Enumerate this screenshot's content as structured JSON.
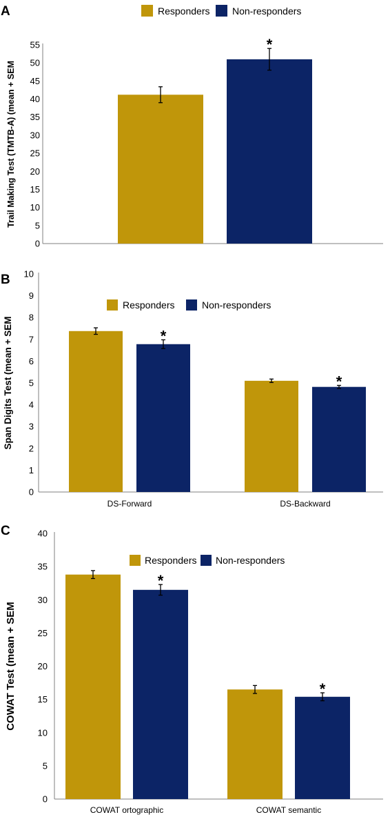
{
  "chart_data": [
    {
      "type": "bar",
      "panel": "A",
      "title": "",
      "xlabel": "",
      "ylabel": "Trail Making Test (TMTB-A) (mean + SEM",
      "ylim": [
        0,
        55
      ],
      "yticks": [
        0,
        5,
        10,
        15,
        20,
        25,
        30,
        35,
        40,
        45,
        50,
        55
      ],
      "categories": [
        ""
      ],
      "series": [
        {
          "name": "Responders",
          "values": [
            41.2
          ],
          "errors": [
            2.2
          ]
        },
        {
          "name": "Non-responders",
          "values": [
            51.0
          ],
          "errors": [
            3.0
          ]
        }
      ],
      "annotations": [
        {
          "text": "*",
          "category": 0,
          "series": 1
        }
      ],
      "legend": "top"
    },
    {
      "type": "bar",
      "panel": "B",
      "title": "",
      "xlabel": "",
      "ylabel": "Span Digits Test (mean + SEM",
      "ylim": [
        0,
        10
      ],
      "yticks": [
        0,
        1,
        2,
        3,
        4,
        5,
        6,
        7,
        8,
        9,
        10
      ],
      "categories": [
        "DS-Forward",
        "DS-Backward"
      ],
      "series": [
        {
          "name": "Responders",
          "values": [
            7.38,
            5.1
          ],
          "errors": [
            0.15,
            0.08
          ]
        },
        {
          "name": "Non-responders",
          "values": [
            6.78,
            4.82
          ],
          "errors": [
            0.2,
            0.07
          ]
        }
      ],
      "annotations": [
        {
          "text": "*",
          "category": 0,
          "series": 1
        },
        {
          "text": "*",
          "category": 1,
          "series": 1
        }
      ],
      "legend": "top"
    },
    {
      "type": "bar",
      "panel": "C",
      "title": "",
      "xlabel": "",
      "ylabel": "COWAT Test (mean + SEM",
      "ylim": [
        0,
        40
      ],
      "yticks": [
        0,
        5,
        10,
        15,
        20,
        25,
        30,
        35,
        40
      ],
      "categories": [
        "COWAT ortographic",
        "COWAT semantic"
      ],
      "series": [
        {
          "name": "Responders",
          "values": [
            33.8,
            16.5
          ],
          "errors": [
            0.6,
            0.6
          ]
        },
        {
          "name": "Non-responders",
          "values": [
            31.5,
            15.4
          ],
          "errors": [
            0.8,
            0.6
          ]
        }
      ],
      "annotations": [
        {
          "text": "*",
          "category": 0,
          "series": 1
        },
        {
          "text": "*",
          "category": 1,
          "series": 1
        }
      ],
      "legend": "top"
    }
  ],
  "colors": {
    "responders": "#C0960A",
    "non_responders": "#0C2466",
    "axis": "#7f7f7f"
  }
}
